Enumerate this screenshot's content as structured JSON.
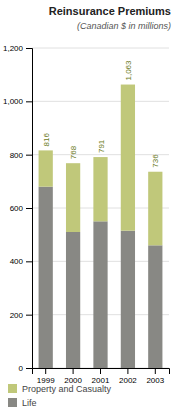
{
  "chart_data": {
    "type": "bar",
    "stacked": true,
    "title": "Reinsurance Premiums",
    "subtitle": "(Canadian $ in millions)",
    "categories": [
      "1999",
      "2000",
      "2001",
      "2002",
      "2003"
    ],
    "series": [
      {
        "name": "Life",
        "color": "#888884",
        "values": [
          680,
          510,
          550,
          515,
          460
        ]
      },
      {
        "name": "Property and Casualty",
        "color": "#c0c87a",
        "values": [
          136,
          258,
          241,
          548,
          276
        ]
      }
    ],
    "totals": {
      "values": [
        816,
        768,
        791,
        1063,
        736
      ],
      "value_labels": [
        "816",
        "768",
        "791",
        "1,063",
        "736"
      ]
    },
    "ylim": [
      0,
      1200
    ],
    "yticks": [
      0,
      200,
      400,
      600,
      800,
      {
        "value": 1000,
        "label": "1,000"
      },
      {
        "value": 1200,
        "label": "1,200"
      }
    ],
    "grid": true,
    "legend": "bottom"
  }
}
